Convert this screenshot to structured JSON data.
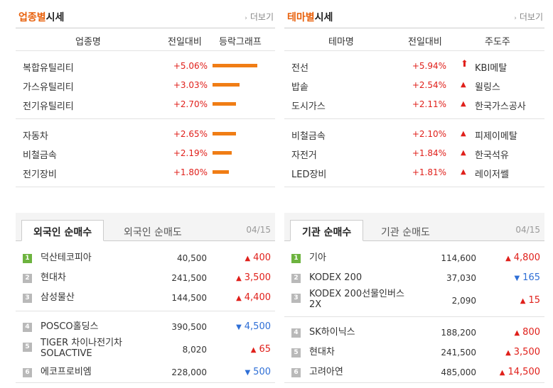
{
  "industry": {
    "title_highlight": "업종별",
    "title_rest": "시세",
    "more": "더보기",
    "columns": [
      "업종명",
      "전일대비",
      "등락그래프"
    ],
    "groups": [
      [
        {
          "name": "복합유틸리티",
          "pct": "+5.06%",
          "bar_fraction": 1.0
        },
        {
          "name": "가스유틸리티",
          "pct": "+3.03%",
          "bar_fraction": 0.6
        },
        {
          "name": "전기유틸리티",
          "pct": "+2.70%",
          "bar_fraction": 0.53
        }
      ],
      [
        {
          "name": "자동차",
          "pct": "+2.65%",
          "bar_fraction": 0.52
        },
        {
          "name": "비철금속",
          "pct": "+2.19%",
          "bar_fraction": 0.43
        },
        {
          "name": "전기장비",
          "pct": "+1.80%",
          "bar_fraction": 0.36
        }
      ]
    ]
  },
  "theme": {
    "title_highlight": "테마별",
    "title_rest": "시세",
    "more": "더보기",
    "columns": [
      "테마명",
      "전일대비",
      "주도주"
    ],
    "groups": [
      [
        {
          "name": "전선",
          "pct": "+5.94%",
          "leader": "KBI메탈",
          "arrow": "up-big"
        },
        {
          "name": "밥솥",
          "pct": "+2.54%",
          "leader": "윌링스",
          "arrow": "up"
        },
        {
          "name": "도시가스",
          "pct": "+2.11%",
          "leader": "한국가스공사",
          "arrow": "up"
        }
      ],
      [
        {
          "name": "비철금속",
          "pct": "+2.10%",
          "leader": "피제이메탈",
          "arrow": "up"
        },
        {
          "name": "자전거",
          "pct": "+1.84%",
          "leader": "한국석유",
          "arrow": "up"
        },
        {
          "name": "LED장비",
          "pct": "+1.81%",
          "leader": "레이저쎌",
          "arrow": "up"
        }
      ]
    ]
  },
  "foreign": {
    "tab_active": "외국인 순매수",
    "tab_inactive": "외국인 순매도",
    "date": "04/15",
    "groups": [
      [
        {
          "rank": "1",
          "name": "덕산테코피아",
          "price": "40,500",
          "change": "400",
          "dir": "up"
        },
        {
          "rank": "2",
          "name": "현대차",
          "price": "241,500",
          "change": "3,500",
          "dir": "up"
        },
        {
          "rank": "3",
          "name": "삼성물산",
          "price": "144,500",
          "change": "4,400",
          "dir": "up"
        }
      ],
      [
        {
          "rank": "4",
          "name": "POSCO홀딩스",
          "price": "390,500",
          "change": "4,500",
          "dir": "down"
        },
        {
          "rank": "5",
          "name": "TIGER 차이나전기차 SOLACTIVE",
          "price": "8,020",
          "change": "65",
          "dir": "up",
          "tall": true
        },
        {
          "rank": "6",
          "name": "에코프로비엠",
          "price": "228,000",
          "change": "500",
          "dir": "down"
        }
      ]
    ]
  },
  "institution": {
    "tab_active": "기관 순매수",
    "tab_inactive": "기관 순매도",
    "date": "04/15",
    "groups": [
      [
        {
          "rank": "1",
          "name": "기아",
          "price": "114,600",
          "change": "4,800",
          "dir": "up"
        },
        {
          "rank": "2",
          "name": "KODEX 200",
          "price": "37,030",
          "change": "165",
          "dir": "down"
        },
        {
          "rank": "3",
          "name": "KODEX 200선물인버스 2X",
          "price": "2,090",
          "change": "15",
          "dir": "up",
          "tall": true
        }
      ],
      [
        {
          "rank": "4",
          "name": "SK하이닉스",
          "price": "188,200",
          "change": "800",
          "dir": "up"
        },
        {
          "rank": "5",
          "name": "현대차",
          "price": "241,500",
          "change": "3,500",
          "dir": "up"
        },
        {
          "rank": "6",
          "name": "고려아연",
          "price": "485,000",
          "change": "14,500",
          "dir": "up"
        }
      ]
    ]
  }
}
